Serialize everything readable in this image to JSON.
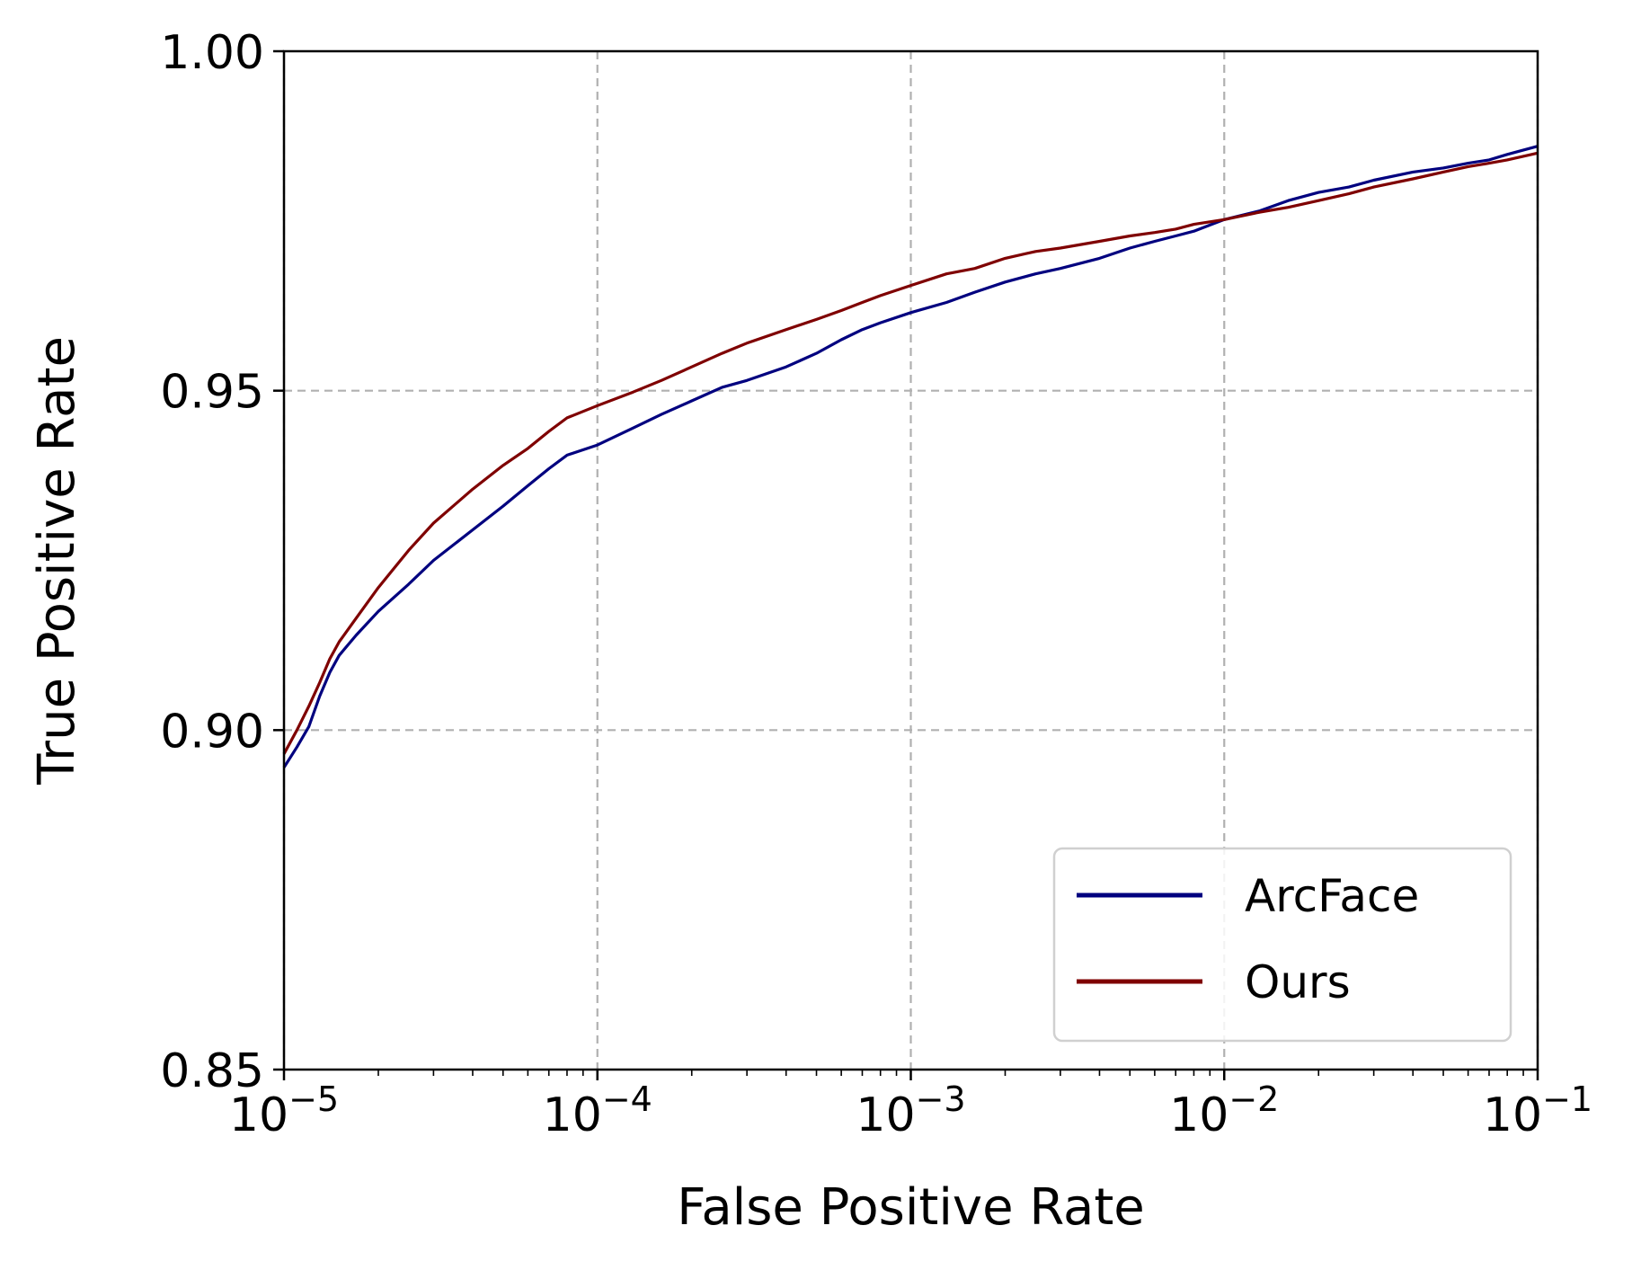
{
  "chart_data": {
    "type": "line",
    "xlabel": "False Positive Rate",
    "ylabel": "True Positive Rate",
    "x_scale": "log",
    "xlim": [
      1e-05,
      0.1
    ],
    "ylim": [
      0.85,
      1.0
    ],
    "grid": true,
    "legend_position": "lower right",
    "x_ticks": [
      {
        "base": "10",
        "exp": "−5",
        "value": 1e-05
      },
      {
        "base": "10",
        "exp": "−4",
        "value": 0.0001
      },
      {
        "base": "10",
        "exp": "−3",
        "value": 0.001
      },
      {
        "base": "10",
        "exp": "−2",
        "value": 0.01
      },
      {
        "base": "10",
        "exp": "−1",
        "value": 0.1
      }
    ],
    "y_ticks": [
      {
        "label": "0.85",
        "value": 0.85
      },
      {
        "label": "0.90",
        "value": 0.9
      },
      {
        "label": "0.95",
        "value": 0.95
      },
      {
        "label": "1.00",
        "value": 1.0
      }
    ],
    "series": [
      {
        "name": "ArcFace",
        "color": "#00007f",
        "x": [
          1e-05,
          1.1e-05,
          1.2e-05,
          1.3e-05,
          1.4e-05,
          1.5e-05,
          1.7e-05,
          2e-05,
          2.5e-05,
          3e-05,
          4e-05,
          5e-05,
          6e-05,
          7e-05,
          8e-05,
          0.0001,
          0.00013,
          0.00016,
          0.0002,
          0.00025,
          0.0003,
          0.0004,
          0.0005,
          0.0006,
          0.0007,
          0.0008,
          0.001,
          0.0013,
          0.0016,
          0.002,
          0.0025,
          0.003,
          0.004,
          0.005,
          0.006,
          0.007,
          0.008,
          0.01,
          0.013,
          0.016,
          0.02,
          0.025,
          0.03,
          0.04,
          0.05,
          0.06,
          0.07,
          0.08,
          0.1
        ],
        "y": [
          0.8945,
          0.8975,
          0.9005,
          0.905,
          0.9085,
          0.911,
          0.914,
          0.9175,
          0.9215,
          0.925,
          0.9295,
          0.933,
          0.936,
          0.9385,
          0.9405,
          0.942,
          0.9445,
          0.9465,
          0.9485,
          0.9505,
          0.9515,
          0.9535,
          0.9555,
          0.9575,
          0.959,
          0.96,
          0.9615,
          0.963,
          0.9645,
          0.966,
          0.9672,
          0.968,
          0.9695,
          0.971,
          0.972,
          0.9728,
          0.9735,
          0.9752,
          0.9765,
          0.978,
          0.9792,
          0.98,
          0.981,
          0.9822,
          0.9828,
          0.9835,
          0.984,
          0.9848,
          0.986
        ]
      },
      {
        "name": "Ours",
        "color": "#7f0000",
        "x": [
          1e-05,
          1.1e-05,
          1.2e-05,
          1.3e-05,
          1.4e-05,
          1.5e-05,
          1.7e-05,
          2e-05,
          2.5e-05,
          3e-05,
          4e-05,
          5e-05,
          6e-05,
          7e-05,
          8e-05,
          0.0001,
          0.00013,
          0.00016,
          0.0002,
          0.00025,
          0.0003,
          0.0004,
          0.0005,
          0.0006,
          0.0007,
          0.0008,
          0.001,
          0.0013,
          0.0016,
          0.002,
          0.0025,
          0.003,
          0.004,
          0.005,
          0.006,
          0.007,
          0.008,
          0.01,
          0.013,
          0.016,
          0.02,
          0.025,
          0.03,
          0.04,
          0.05,
          0.06,
          0.07,
          0.08,
          0.1
        ],
        "y": [
          0.8965,
          0.9,
          0.9035,
          0.907,
          0.9105,
          0.913,
          0.9165,
          0.921,
          0.9265,
          0.9305,
          0.9355,
          0.939,
          0.9415,
          0.944,
          0.946,
          0.9478,
          0.9498,
          0.9515,
          0.9535,
          0.9555,
          0.957,
          0.959,
          0.9605,
          0.9618,
          0.963,
          0.964,
          0.9655,
          0.9672,
          0.968,
          0.9695,
          0.9705,
          0.971,
          0.972,
          0.9728,
          0.9733,
          0.9738,
          0.9745,
          0.9752,
          0.9763,
          0.977,
          0.978,
          0.979,
          0.98,
          0.9812,
          0.9822,
          0.983,
          0.9835,
          0.984,
          0.985
        ]
      }
    ]
  }
}
